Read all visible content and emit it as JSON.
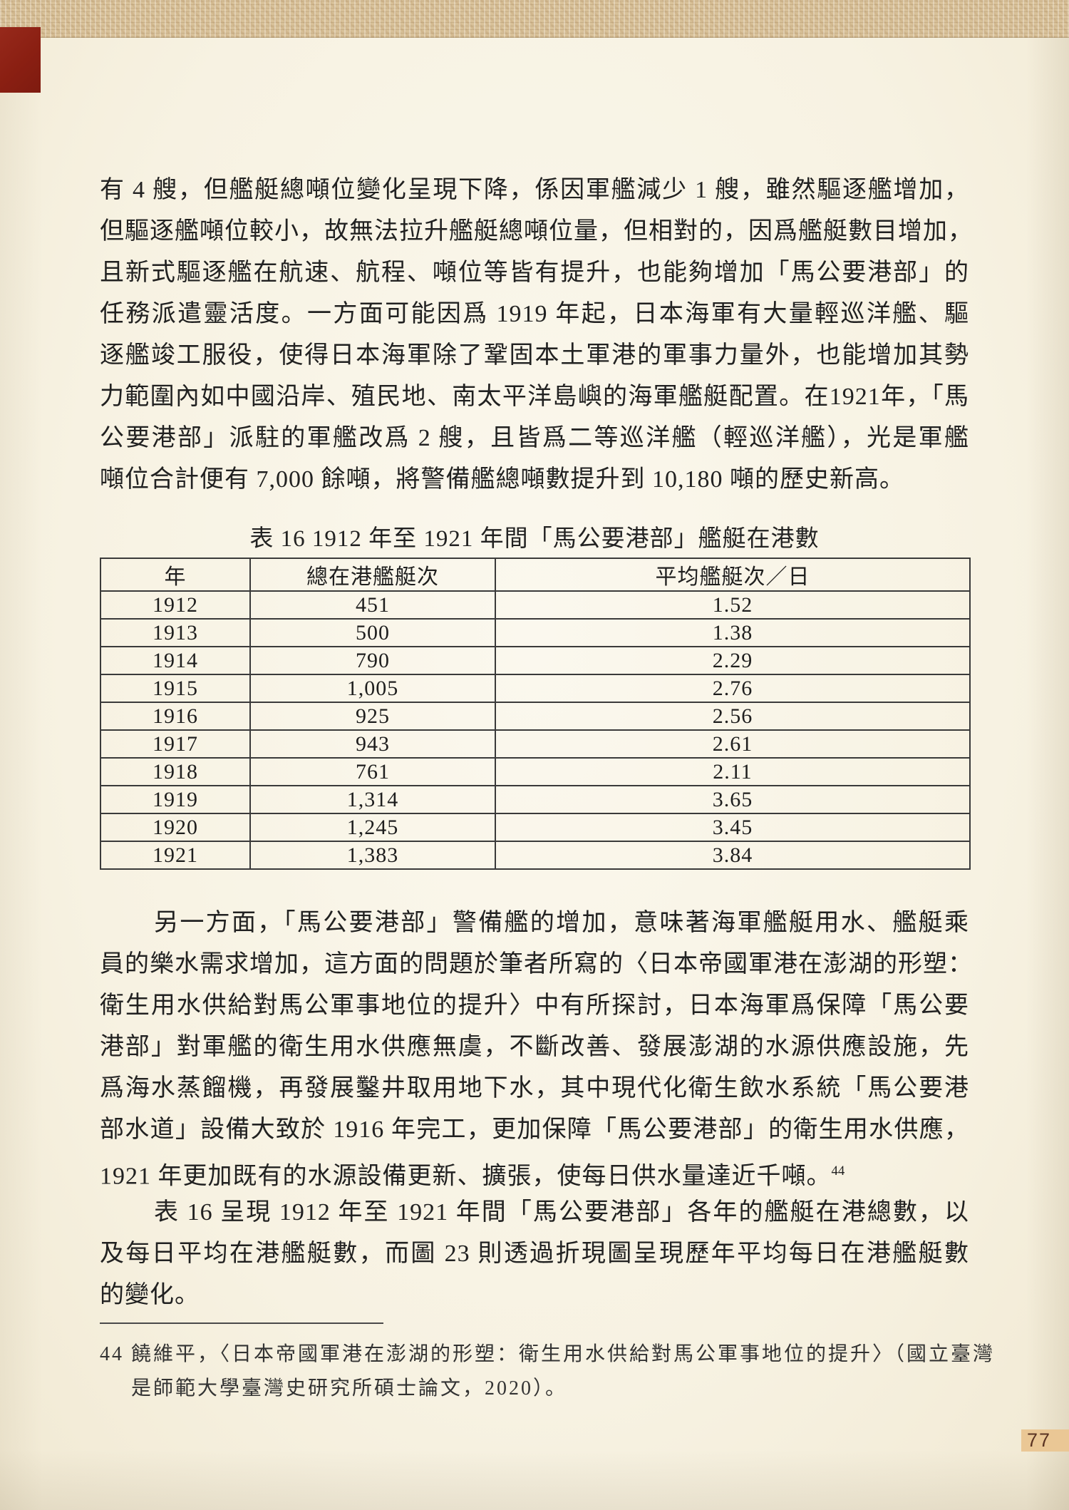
{
  "page": {
    "number": "77"
  },
  "colors": {
    "top_band": "#d8c199",
    "red_block": "#8a1f12",
    "paper": "#f7f2e2",
    "badge_bg": "#eac795",
    "badge_text": "#5a3322"
  },
  "paragraphs": [
    {
      "indent": false,
      "lines": [
        "有 4 艘，但艦艇總噸位變化呈現下降，係因軍艦減少 1 艘，雖然驅逐艦增加，",
        "但驅逐艦噸位較小，故無法拉升艦艇總噸位量，但相對的，因爲艦艇數目增加，",
        "且新式驅逐艦在航速、航程、噸位等皆有提升，也能夠增加「馬公要港部」的",
        "任務派遣靈活度。一方面可能因爲 1919 年起，日本海軍有大量輕巡洋艦、驅",
        "逐艦竣工服役，使得日本海軍除了鞏固本土軍港的軍事力量外，也能增加其勢",
        "力範圍內如中國沿岸、殖民地、南太平洋島嶼的海軍艦艇配置。在1921年，「馬",
        "公要港部」派駐的軍艦改爲 2 艘，且皆爲二等巡洋艦（輕巡洋艦），光是軍艦",
        "噸位合計便有 7,000 餘噸，將警備艦總噸數提升到 10,180 噸的歷史新高。"
      ]
    },
    {
      "indent": true,
      "lines": [
        "另一方面，「馬公要港部」警備艦的增加，意味著海軍艦艇用水、艦艇乘",
        "員的樂水需求增加，這方面的問題於筆者所寫的〈日本帝國軍港在澎湖的形塑：",
        "衛生用水供給對馬公軍事地位的提升〉中有所探討，日本海軍爲保障「馬公要",
        "港部」對軍艦的衛生用水供應無虞，不斷改善、發展澎湖的水源供應設施，先",
        "爲海水蒸餾機，再發展鑿井取用地下水，其中現代化衛生飲水系統「馬公要港",
        "部水道」設備大致於 1916 年完工，更加保障「馬公要港部」的衛生用水供應，",
        {
          "text": "1921 年更加既有的水源設備更新、擴張，使每日供水量達近千噸。",
          "sup": "44"
        }
      ]
    },
    {
      "indent": true,
      "lines": [
        "表 16 呈現 1912 年至 1921 年間「馬公要港部」各年的艦艇在港總數，以",
        "及每日平均在港艦艇數，而圖 23 則透過折現圖呈現歷年平均每日在港艦艇數",
        "的變化。"
      ]
    }
  ],
  "table": {
    "caption": "表 16  1912 年至 1921 年間「馬公要港部」艦艇在港數",
    "columns": [
      "年",
      "總在港艦艇次",
      "平均艦艇次／日"
    ],
    "rows": [
      [
        "1912",
        "451",
        "1.52"
      ],
      [
        "1913",
        "500",
        "1.38"
      ],
      [
        "1914",
        "790",
        "2.29"
      ],
      [
        "1915",
        "1,005",
        "2.76"
      ],
      [
        "1916",
        "925",
        "2.56"
      ],
      [
        "1917",
        "943",
        "2.61"
      ],
      [
        "1918",
        "761",
        "2.11"
      ],
      [
        "1919",
        "1,314",
        "3.65"
      ],
      [
        "1920",
        "1,245",
        "3.45"
      ],
      [
        "1921",
        "1,383",
        "3.84"
      ]
    ]
  },
  "footnote": {
    "lines": [
      "44 饒維平，〈日本帝國軍港在澎湖的形塑：衛生用水供給對馬公軍事地位的提升〉（國立臺灣",
      "是師範大學臺灣史研究所碩士論文，2020）。"
    ]
  }
}
